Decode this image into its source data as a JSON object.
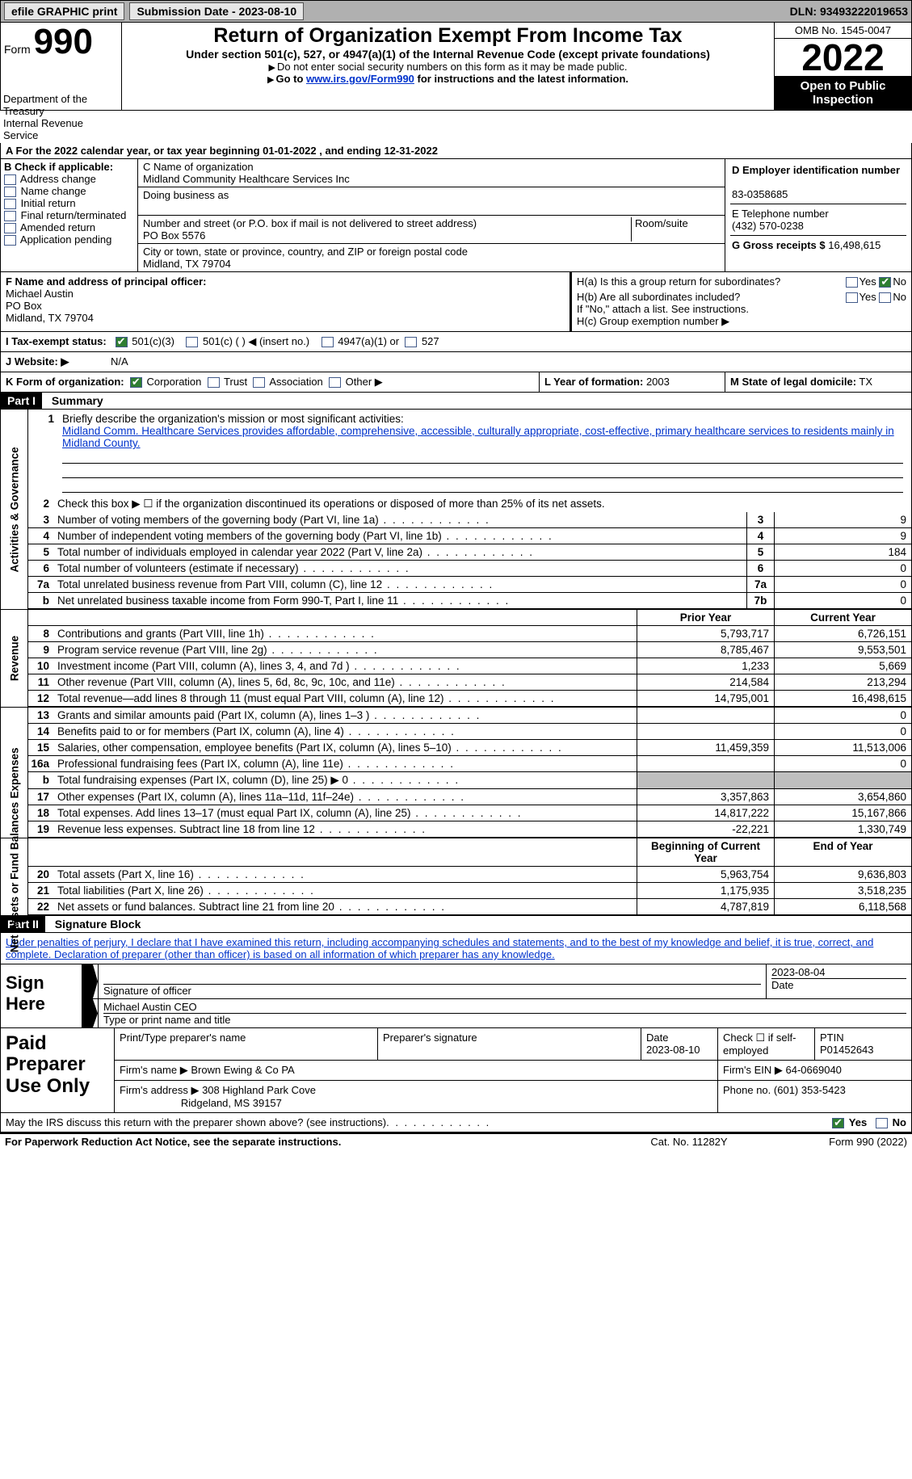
{
  "topbar": {
    "efile": "efile GRAPHIC print",
    "submission": "Submission Date - 2023-08-10",
    "dln": "DLN: 93493222019653"
  },
  "header": {
    "form_word": "Form",
    "form_num": "990",
    "title": "Return of Organization Exempt From Income Tax",
    "subtitle": "Under section 501(c), 527, or 4947(a)(1) of the Internal Revenue Code (except private foundations)",
    "note1": "Do not enter social security numbers on this form as it may be made public.",
    "note2_pre": "Go to ",
    "note2_link": "www.irs.gov/Form990",
    "note2_post": " for instructions and the latest information.",
    "omb": "OMB No. 1545-0047",
    "year": "2022",
    "open1": "Open to Public",
    "open2": "Inspection",
    "dept": "Department of the Treasury",
    "irs": "Internal Revenue Service"
  },
  "rowA": {
    "prefix": "A For the 2022 calendar year, or tax year beginning ",
    "begin": "01-01-2022",
    "mid": " , and ending ",
    "end": "12-31-2022"
  },
  "B": {
    "label": "B Check if applicable:",
    "opts": [
      "Address change",
      "Name change",
      "Initial return",
      "Final return/terminated",
      "Amended return",
      "Application pending"
    ]
  },
  "C": {
    "name_label": "C Name of organization",
    "name": "Midland Community Healthcare Services Inc",
    "dba_label": "Doing business as",
    "dba": "",
    "addr_label": "Number and street (or P.O. box if mail is not delivered to street address)",
    "room_label": "Room/suite",
    "addr": "PO Box 5576",
    "city_label": "City or town, state or province, country, and ZIP or foreign postal code",
    "city": "Midland, TX  79704"
  },
  "D": {
    "label": "D Employer identification number",
    "val": "83-0358685"
  },
  "E": {
    "label": "E Telephone number",
    "val": "(432) 570-0238"
  },
  "G": {
    "label": "G Gross receipts $",
    "val": "16,498,615"
  },
  "F": {
    "label": "F Name and address of principal officer:",
    "name": "Michael Austin",
    "addr": "PO Box",
    "city": "Midland, TX  79704"
  },
  "H": {
    "a": "H(a)  Is this a group return for subordinates?",
    "b": "H(b)  Are all subordinates included?",
    "bnote": "If \"No,\" attach a list. See instructions.",
    "c": "H(c)  Group exemption number ▶",
    "yes": "Yes",
    "no": "No"
  },
  "I": {
    "label": "I Tax-exempt status:",
    "o1": "501(c)(3)",
    "o2": "501(c) (  ) ◀ (insert no.)",
    "o3": "4947(a)(1) or",
    "o4": "527"
  },
  "J": {
    "label": "J   Website: ▶",
    "val": "N/A"
  },
  "K": {
    "label": "K Form of organization:",
    "opts": [
      "Corporation",
      "Trust",
      "Association",
      "Other ▶"
    ]
  },
  "L": {
    "label": "L Year of formation:",
    "val": "2003"
  },
  "M": {
    "label": "M State of legal domicile:",
    "val": "TX"
  },
  "part1": {
    "hdr": "Part I",
    "title": "Summary",
    "mission_label": "Briefly describe the organization's mission or most significant activities:",
    "mission": "Midland Comm. Healthcare Services provides affordable, comprehensive, accessible, culturally appropriate, cost-effective, primary healthcare services to residents mainly in Midland County.",
    "line2": "Check this box ▶ ☐ if the organization discontinued its operations or disposed of more than 25% of its net assets.",
    "prior_hdr": "Prior Year",
    "current_hdr": "Current Year",
    "boy_hdr": "Beginning of Current Year",
    "eoy_hdr": "End of Year",
    "rows_ag": [
      {
        "n": "3",
        "t": "Number of voting members of the governing body (Part VI, line 1a)",
        "box": "3",
        "v": "9"
      },
      {
        "n": "4",
        "t": "Number of independent voting members of the governing body (Part VI, line 1b)",
        "box": "4",
        "v": "9"
      },
      {
        "n": "5",
        "t": "Total number of individuals employed in calendar year 2022 (Part V, line 2a)",
        "box": "5",
        "v": "184"
      },
      {
        "n": "6",
        "t": "Total number of volunteers (estimate if necessary)",
        "box": "6",
        "v": "0"
      },
      {
        "n": "7a",
        "t": "Total unrelated business revenue from Part VIII, column (C), line 12",
        "box": "7a",
        "v": "0"
      },
      {
        "n": "b",
        "t": "Net unrelated business taxable income from Form 990-T, Part I, line 11",
        "box": "7b",
        "v": "0"
      }
    ],
    "rows_rev": [
      {
        "n": "8",
        "t": "Contributions and grants (Part VIII, line 1h)",
        "p": "5,793,717",
        "c": "6,726,151"
      },
      {
        "n": "9",
        "t": "Program service revenue (Part VIII, line 2g)",
        "p": "8,785,467",
        "c": "9,553,501"
      },
      {
        "n": "10",
        "t": "Investment income (Part VIII, column (A), lines 3, 4, and 7d )",
        "p": "1,233",
        "c": "5,669"
      },
      {
        "n": "11",
        "t": "Other revenue (Part VIII, column (A), lines 5, 6d, 8c, 9c, 10c, and 11e)",
        "p": "214,584",
        "c": "213,294"
      },
      {
        "n": "12",
        "t": "Total revenue—add lines 8 through 11 (must equal Part VIII, column (A), line 12)",
        "p": "14,795,001",
        "c": "16,498,615"
      }
    ],
    "rows_exp": [
      {
        "n": "13",
        "t": "Grants and similar amounts paid (Part IX, column (A), lines 1–3 )",
        "p": "",
        "c": "0"
      },
      {
        "n": "14",
        "t": "Benefits paid to or for members (Part IX, column (A), line 4)",
        "p": "",
        "c": "0"
      },
      {
        "n": "15",
        "t": "Salaries, other compensation, employee benefits (Part IX, column (A), lines 5–10)",
        "p": "11,459,359",
        "c": "11,513,006"
      },
      {
        "n": "16a",
        "t": "Professional fundraising fees (Part IX, column (A), line 11e)",
        "p": "",
        "c": "0"
      },
      {
        "n": "b",
        "t": "Total fundraising expenses (Part IX, column (D), line 25) ▶ 0",
        "p": "shade",
        "c": "shade"
      },
      {
        "n": "17",
        "t": "Other expenses (Part IX, column (A), lines 11a–11d, 11f–24e)",
        "p": "3,357,863",
        "c": "3,654,860"
      },
      {
        "n": "18",
        "t": "Total expenses. Add lines 13–17 (must equal Part IX, column (A), line 25)",
        "p": "14,817,222",
        "c": "15,167,866"
      },
      {
        "n": "19",
        "t": "Revenue less expenses. Subtract line 18 from line 12",
        "p": "-22,221",
        "c": "1,330,749"
      }
    ],
    "rows_na": [
      {
        "n": "20",
        "t": "Total assets (Part X, line 16)",
        "p": "5,963,754",
        "c": "9,636,803"
      },
      {
        "n": "21",
        "t": "Total liabilities (Part X, line 26)",
        "p": "1,175,935",
        "c": "3,518,235"
      },
      {
        "n": "22",
        "t": "Net assets or fund balances. Subtract line 21 from line 20",
        "p": "4,787,819",
        "c": "6,118,568"
      }
    ]
  },
  "part2": {
    "hdr": "Part II",
    "title": "Signature Block",
    "intro": "Under penalties of perjury, I declare that I have examined this return, including accompanying schedules and statements, and to the best of my knowledge and belief, it is true, correct, and complete. Declaration of preparer (other than officer) is based on all information of which preparer has any knowledge."
  },
  "sign": {
    "label": "Sign Here",
    "sig_of": "Signature of officer",
    "date": "2023-08-04",
    "date_label": "Date",
    "name": "Michael Austin CEO",
    "name_label": "Type or print name and title"
  },
  "prep": {
    "label": "Paid Preparer Use Only",
    "c1": "Print/Type preparer's name",
    "c2": "Preparer's signature",
    "c3l": "Date",
    "c3": "2023-08-10",
    "c4l": "Check ☐ if self-employed",
    "c5l": "PTIN",
    "c5": "P01452643",
    "firm_name_l": "Firm's name   ▶",
    "firm_name": "Brown Ewing & Co PA",
    "firm_ein_l": "Firm's EIN ▶",
    "firm_ein": "64-0669040",
    "firm_addr_l": "Firm's address ▶",
    "firm_addr1": "308 Highland Park Cove",
    "firm_addr2": "Ridgeland, MS  39157",
    "phone_l": "Phone no.",
    "phone": "(601) 353-5423"
  },
  "discuss": {
    "text": "May the IRS discuss this return with the preparer shown above? (see instructions)",
    "yes": "Yes",
    "no": "No"
  },
  "footer": {
    "left": "For Paperwork Reduction Act Notice, see the separate instructions.",
    "mid": "Cat. No. 11282Y",
    "right": "Form 990 (2022)"
  },
  "vtabs": {
    "ag": "Activities & Governance",
    "rev": "Revenue",
    "exp": "Expenses",
    "na": "Net Assets or Fund Balances"
  }
}
